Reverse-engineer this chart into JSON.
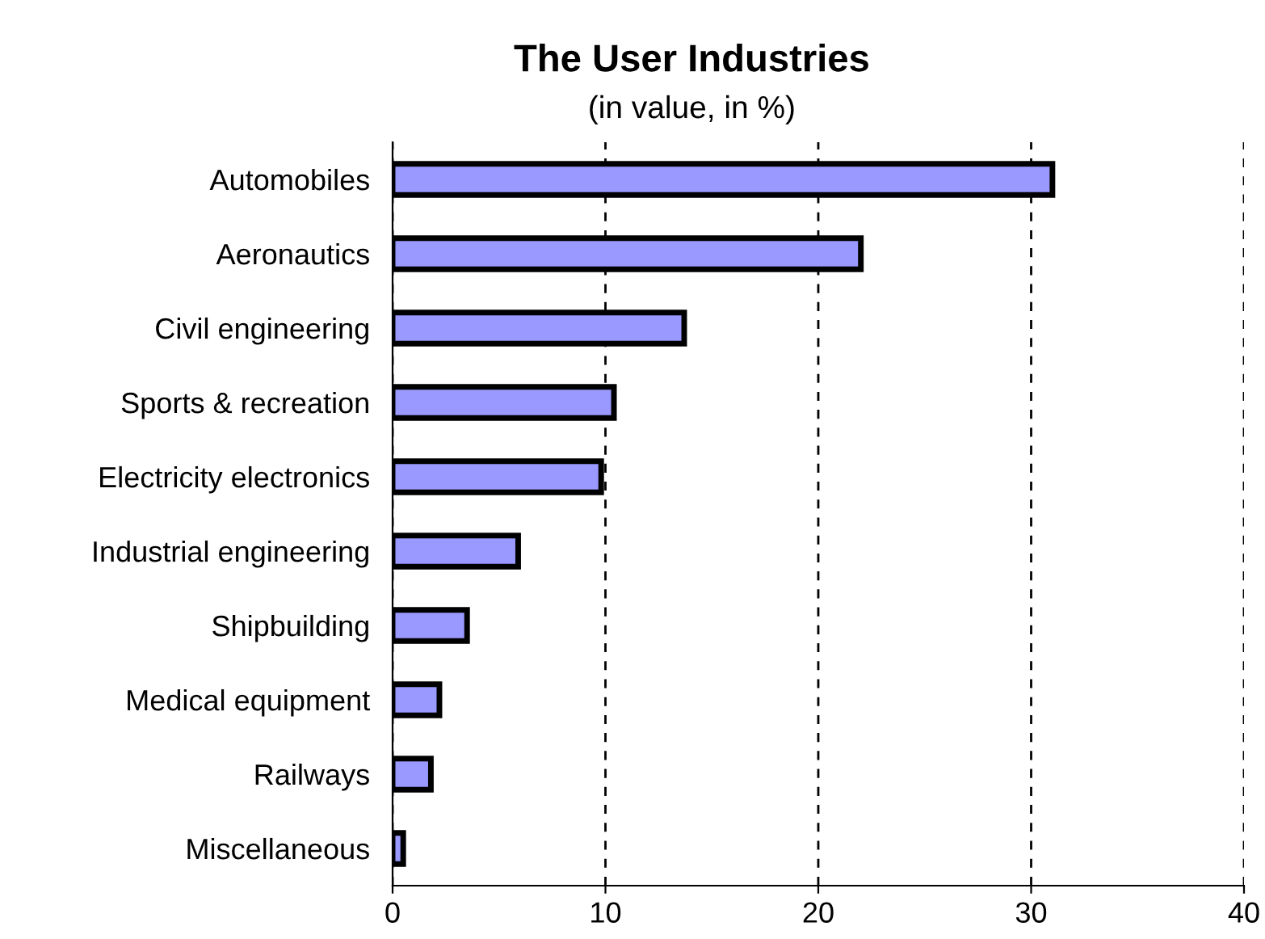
{
  "chart_data": {
    "type": "bar",
    "orientation": "horizontal",
    "title": "The User Industries",
    "subtitle": "(in value, in %)",
    "categories": [
      "Automobiles",
      "Aeronautics",
      "Civil engineering",
      "Sports & recreation",
      "Electricity electronics",
      "Industrial engineering",
      "Shipbuilding",
      "Medical equipment",
      "Railways",
      "Miscellaneous"
    ],
    "values": [
      31,
      22,
      13.7,
      10.4,
      9.8,
      5.9,
      3.5,
      2.2,
      1.8,
      0.5
    ],
    "color": "#9999ff",
    "xlim": [
      0,
      40
    ],
    "xticks": [
      0,
      10,
      20,
      30,
      40
    ],
    "grid": "x",
    "line_style": "dashed"
  }
}
